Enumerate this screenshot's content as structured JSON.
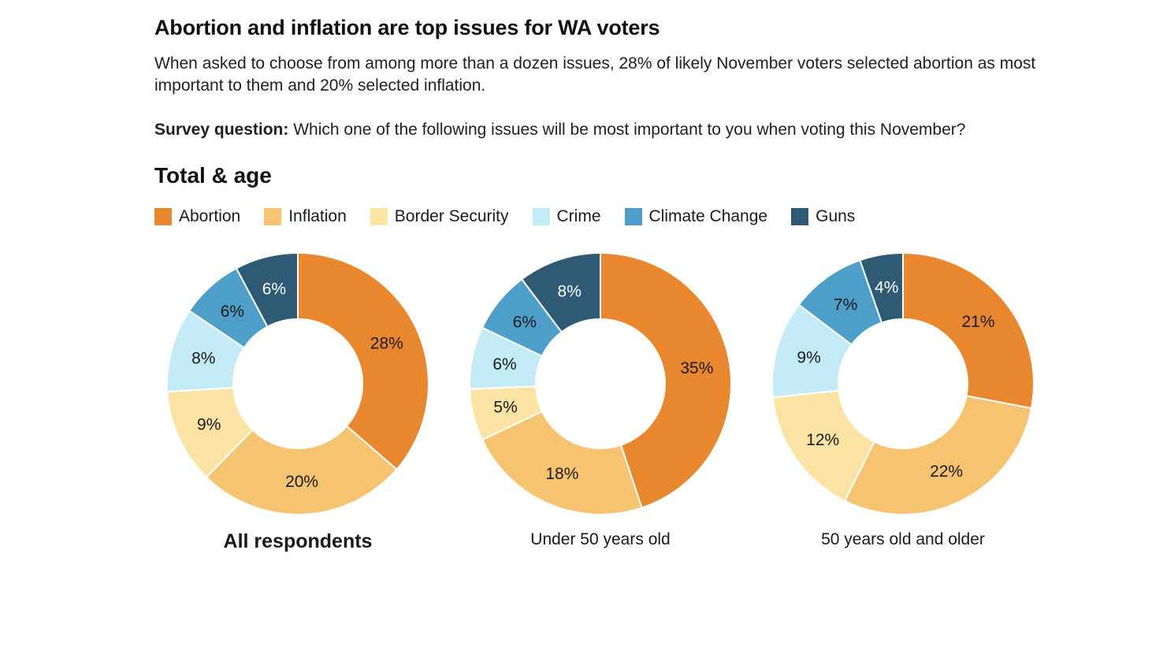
{
  "header": {
    "title": "Abortion and inflation are top issues for WA voters",
    "subtitle": "When asked to choose from among more than a dozen issues, 28% of likely November voters selected abortion as most important to them and 20% selected inflation.",
    "survey_label": "Survey question:",
    "survey_text": " Which one of the following issues will be most important to you when voting this November?",
    "section_title": "Total & age"
  },
  "chart_data": {
    "type": "pie",
    "subtype": "donut",
    "title": "Total & age",
    "legend_position": "top",
    "categories": [
      "Abortion",
      "Inflation",
      "Border Security",
      "Crime",
      "Climate Change",
      "Guns"
    ],
    "colors": [
      "#E8872D",
      "#F6C371",
      "#FAE3A3",
      "#C2EBF5",
      "#4D9FC9",
      "#2E5A75"
    ],
    "label_colors": [
      "#1a1a1a",
      "#1a1a1a",
      "#1a1a1a",
      "#1a1a1a",
      "#1a1a1a",
      "#ffffff"
    ],
    "charts": [
      {
        "title": "All respondents",
        "values": [
          28,
          20,
          9,
          8,
          6,
          6
        ],
        "labels": [
          "28%",
          "20%",
          "9%",
          "8%",
          "6%",
          "6%"
        ]
      },
      {
        "title": "Under 50 years old",
        "values": [
          35,
          18,
          5,
          6,
          6,
          8
        ],
        "labels": [
          "35%",
          "18%",
          "5%",
          "6%",
          "6%",
          "8%"
        ]
      },
      {
        "title": "50 years old and older",
        "values": [
          21,
          22,
          12,
          9,
          7,
          4
        ],
        "labels": [
          "21%",
          "22%",
          "12%",
          "9%",
          "7%",
          "4%"
        ]
      }
    ]
  }
}
